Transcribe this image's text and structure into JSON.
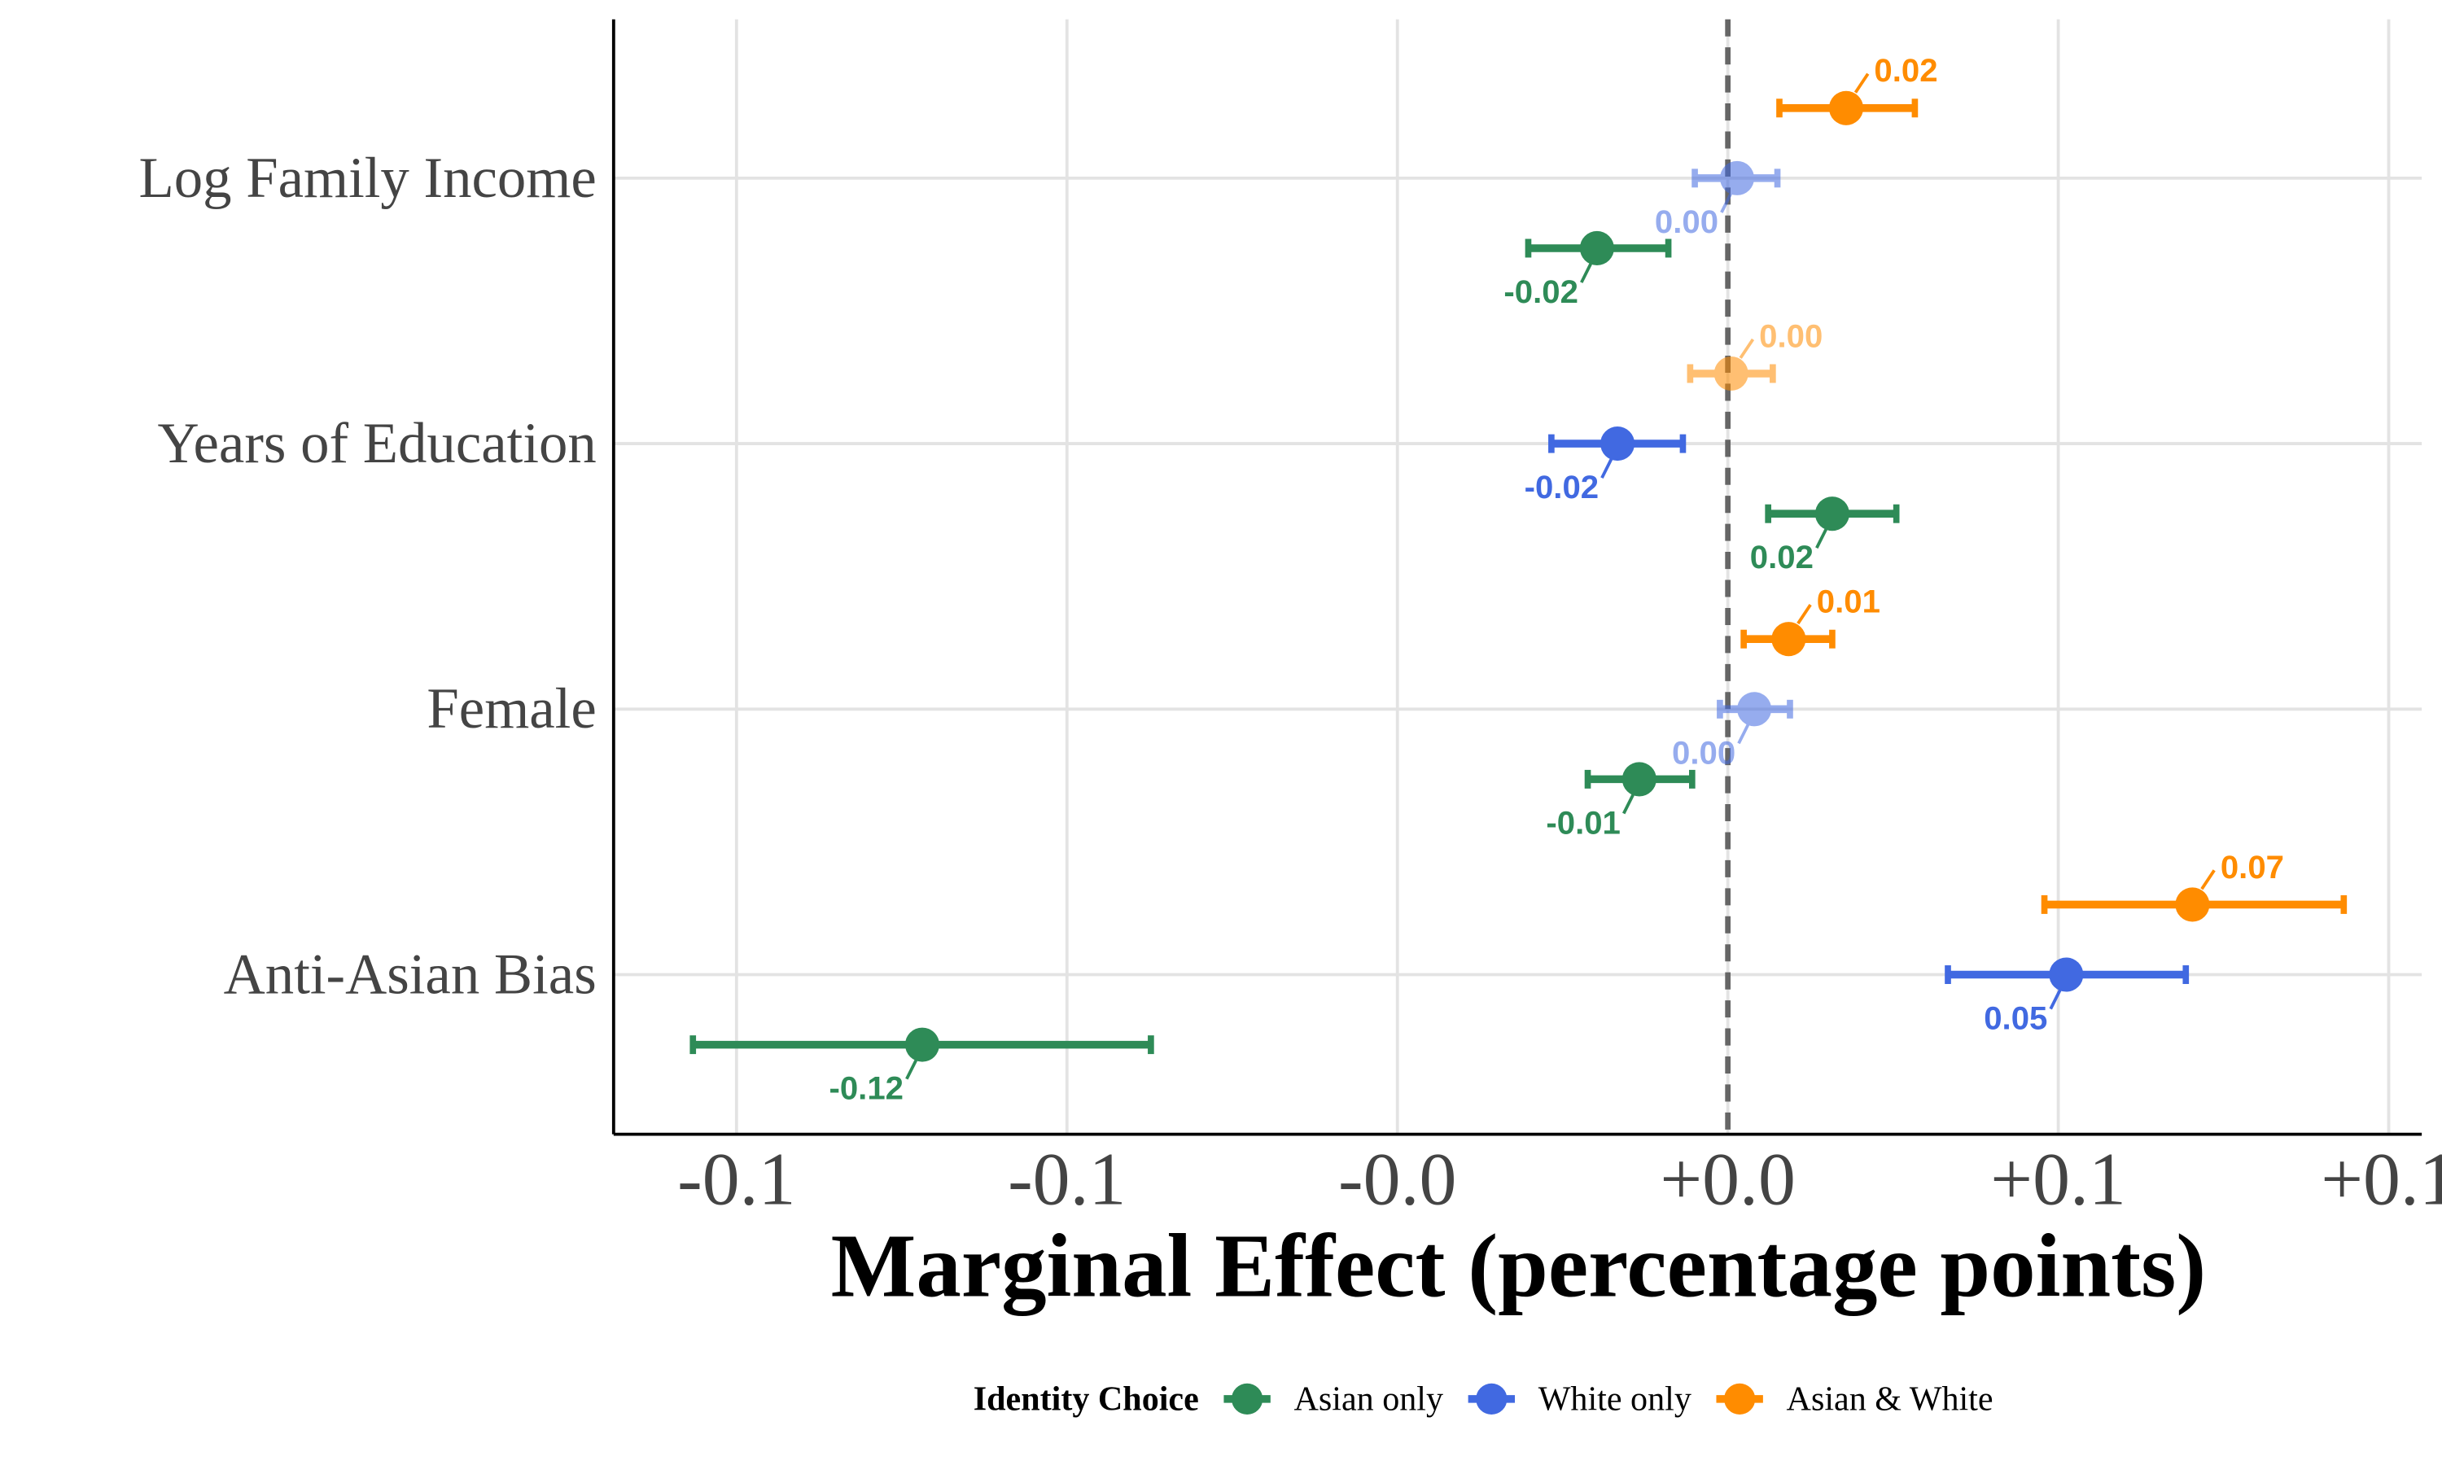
{
  "chart_data": {
    "type": "dot-whisker",
    "x_label": "Marginal Effect (percentage points)",
    "legend_title": "Identity Choice",
    "categories": [
      "Log Family Income",
      "Years of Education",
      "Female",
      "Anti-Asian Bias"
    ],
    "xlim": [
      -0.1686,
      0.105
    ],
    "xticks": [
      {
        "value": -0.15,
        "label": "-0.1"
      },
      {
        "value": -0.1,
        "label": "-0.1"
      },
      {
        "value": -0.05,
        "label": "-0.0"
      },
      {
        "value": 0,
        "label": "+0.0"
      },
      {
        "value": 0.05,
        "label": "+0.1"
      },
      {
        "value": 0.1,
        "label": "+0.1"
      }
    ],
    "reference_line": 0,
    "grid": true,
    "series": [
      {
        "name": "Asian only",
        "color": "#2e8b57",
        "values": [
          -0.0198,
          0.0158,
          -0.0134,
          -0.1219
        ],
        "value_labels": [
          "-0.02",
          "0.02",
          "-0.01",
          "-0.12"
        ],
        "ci_low": [
          -0.0302,
          0.0061,
          -0.0212,
          -0.1566
        ],
        "ci_high": [
          -0.009,
          0.0255,
          -0.0054,
          -0.0873
        ]
      },
      {
        "name": "White only",
        "color": "#4169e1",
        "values": [
          0.0014,
          -0.0167,
          0.004,
          0.0512
        ],
        "value_labels": [
          "0.00",
          "-0.02",
          "0.00",
          "0.05"
        ],
        "ci_low": [
          -0.005,
          -0.0267,
          -0.0012,
          0.0333
        ],
        "ci_high": [
          0.0075,
          -0.0068,
          0.0094,
          0.0693
        ]
      },
      {
        "name": "Asian & White",
        "color": "#ff8c00",
        "values": [
          0.0179,
          0.0005,
          0.0092,
          0.0703
        ],
        "value_labels": [
          "0.02",
          "0.00",
          "0.01",
          "0.07"
        ],
        "ci_low": [
          0.0078,
          -0.0057,
          0.0024,
          0.0479
        ],
        "ci_high": [
          0.0283,
          0.0068,
          0.0158,
          0.0932
        ]
      }
    ]
  }
}
